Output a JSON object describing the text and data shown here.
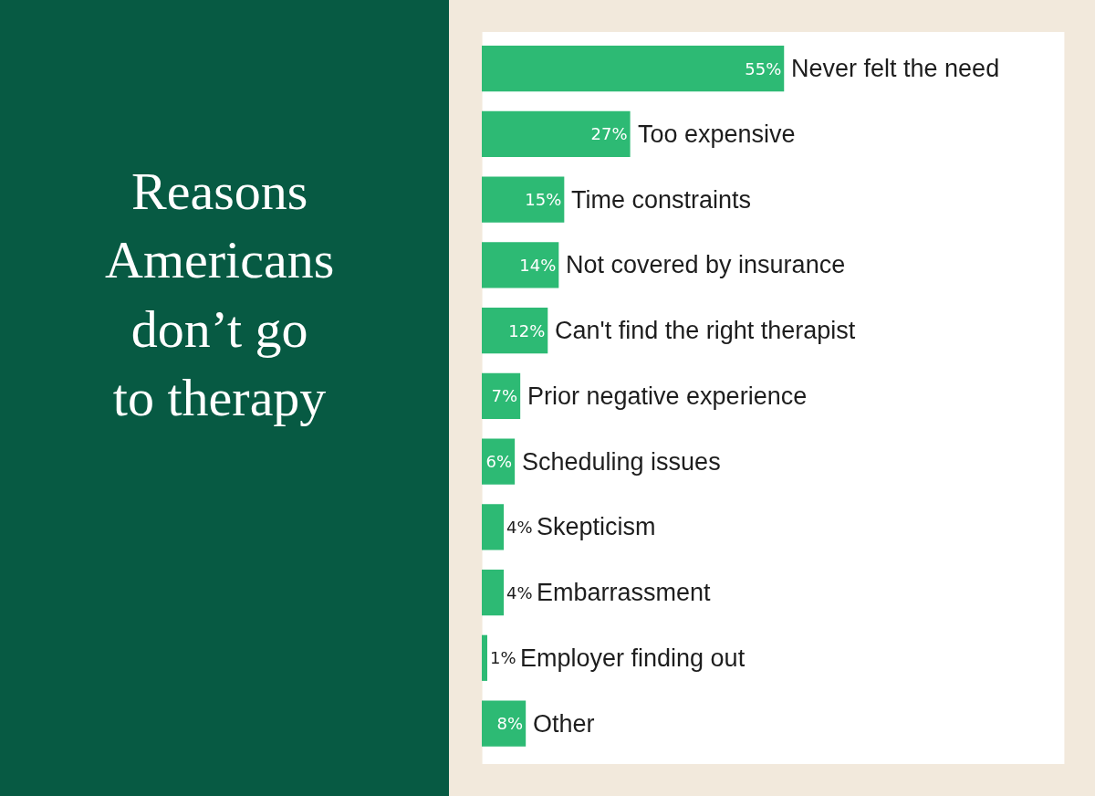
{
  "chart_data": {
    "type": "bar",
    "orientation": "horizontal",
    "title": "Reasons Americans don’t go to therapy",
    "categories": [
      "Never felt the need",
      "Too expensive",
      "Time constraints",
      "Not covered by insurance",
      "Can't find the right therapist",
      "Prior negative experience",
      "Scheduling issues",
      "Skepticism",
      "Embarrassment",
      "Employer finding out",
      "Other"
    ],
    "values": [
      55,
      27,
      15,
      14,
      12,
      7,
      6,
      4,
      4,
      1,
      8
    ],
    "value_labels": [
      "55%",
      "27%",
      "15%",
      "14%",
      "12%",
      "7%",
      "6%",
      "4%",
      "4%",
      "1%",
      "8%"
    ],
    "color": "#2dba74",
    "xlim": [
      0,
      106
    ],
    "tick_labels": false,
    "legend": false
  }
}
